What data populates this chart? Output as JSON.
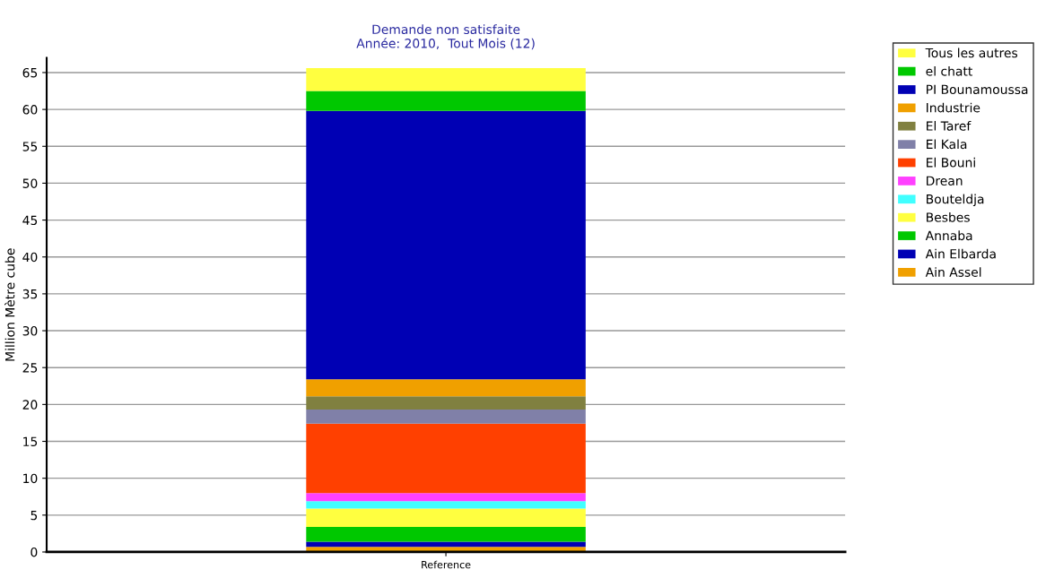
{
  "chart_data": {
    "type": "bar",
    "title": "Demande non satisfaite",
    "subtitle": "Année: 2010,  Tout Mois (12)",
    "ylabel": "Million Mètre cube",
    "categories": [
      "Reference"
    ],
    "stacked": true,
    "ylim": [
      0,
      67
    ],
    "yticks": [
      0,
      5,
      10,
      15,
      20,
      25,
      30,
      35,
      40,
      45,
      50,
      55,
      60,
      65
    ],
    "grid": "y",
    "legend": "top right",
    "series": [
      {
        "name": "Ain Assel",
        "color": "#f0a000",
        "values": [
          0.7
        ]
      },
      {
        "name": "Ain Elbarda",
        "color": "#0000b4",
        "values": [
          0.7
        ]
      },
      {
        "name": "Annaba",
        "color": "#00c800",
        "values": [
          2.0
        ]
      },
      {
        "name": "Besbes",
        "color": "#ffff40",
        "values": [
          2.5
        ]
      },
      {
        "name": "Bouteldja",
        "color": "#40ffff",
        "values": [
          1.0
        ]
      },
      {
        "name": "Drean",
        "color": "#ff40ff",
        "values": [
          1.1
        ]
      },
      {
        "name": "El Bouni",
        "color": "#ff4000",
        "values": [
          9.4
        ]
      },
      {
        "name": "El Kala",
        "color": "#8080a8",
        "values": [
          1.9
        ]
      },
      {
        "name": "El Taref",
        "color": "#808040",
        "values": [
          1.8
        ]
      },
      {
        "name": "Industrie",
        "color": "#f0a000",
        "values": [
          2.3
        ]
      },
      {
        "name": "PI Bounamoussa",
        "color": "#0000b4",
        "values": [
          36.4
        ]
      },
      {
        "name": "el chatt",
        "color": "#00c800",
        "values": [
          2.7
        ]
      },
      {
        "name": "Tous les autres",
        "color": "#ffff40",
        "values": [
          3.1
        ]
      }
    ]
  }
}
